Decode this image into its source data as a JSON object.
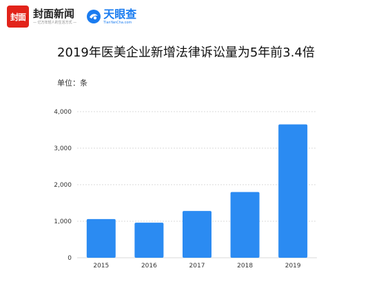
{
  "header": {
    "logo_text": "封面",
    "brand_name": "封面新闻",
    "brand_slogan": "— 亿万年轻人的生活方式 —",
    "partner_name": "天眼查",
    "partner_url": "TianYanCha.com"
  },
  "unit_label": "单位：条",
  "colors": {
    "bar": "#2b8bf2",
    "grid": "#cccccc",
    "brand_red": "#e2231a",
    "partner_blue": "#1a7cf0"
  },
  "chart_data": {
    "type": "bar",
    "title": "2019年医美企业新增法律诉讼量为5年前3.4倍",
    "xlabel": "",
    "ylabel": "",
    "categories": [
      "2015",
      "2016",
      "2017",
      "2018",
      "2019"
    ],
    "values": [
      1060,
      960,
      1280,
      1800,
      3650
    ],
    "ylim": [
      0,
      4000
    ],
    "yticks": [
      0,
      1000,
      2000,
      3000,
      4000
    ],
    "ytick_labels": [
      "0",
      "1,000",
      "2,000",
      "3,000",
      "4,000"
    ],
    "grid": true
  }
}
